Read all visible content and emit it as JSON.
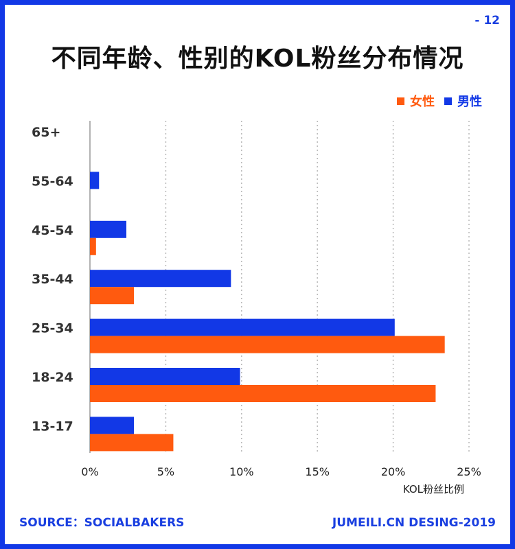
{
  "page_number": "- 12",
  "footer": {
    "source": "SOURCE：SOCIALBAKERS",
    "credit": "JUMEILI.CN DESING-2019"
  },
  "colors": {
    "female": "#ff5a0f",
    "male": "#1238e6",
    "frame": "#1238e6"
  },
  "chart_data": {
    "type": "bar",
    "orientation": "horizontal",
    "title": "不同年龄、性别的KOL粉丝分布情况",
    "xlabel": "KOL粉丝比例",
    "ylabel": "",
    "xlim": [
      0,
      25
    ],
    "xticks": [
      "0%",
      "5%",
      "10%",
      "15%",
      "20%",
      "25%"
    ],
    "grid": "vertical dotted",
    "legend_placement": "top-right",
    "categories": [
      "65+",
      "55-64",
      "45-54",
      "35-44",
      "25-34",
      "18-24",
      "13-17"
    ],
    "series": [
      {
        "name": "女性",
        "values": [
          0,
          0,
          0.4,
          2.9,
          23.4,
          22.8,
          5.5
        ]
      },
      {
        "name": "男性",
        "values": [
          0,
          0.6,
          2.4,
          9.3,
          20.1,
          9.9,
          2.9
        ]
      }
    ]
  }
}
